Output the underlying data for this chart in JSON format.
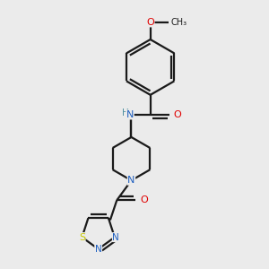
{
  "bg_color": "#ebebeb",
  "line_color": "#1a1a1a",
  "bond_lw": 1.6,
  "atom_colors": {
    "N": "#2060c0",
    "O": "#e00000",
    "S": "#c8c800",
    "H_N": "#5090a0",
    "C": "#1a1a1a"
  },
  "font_size": 7.5
}
